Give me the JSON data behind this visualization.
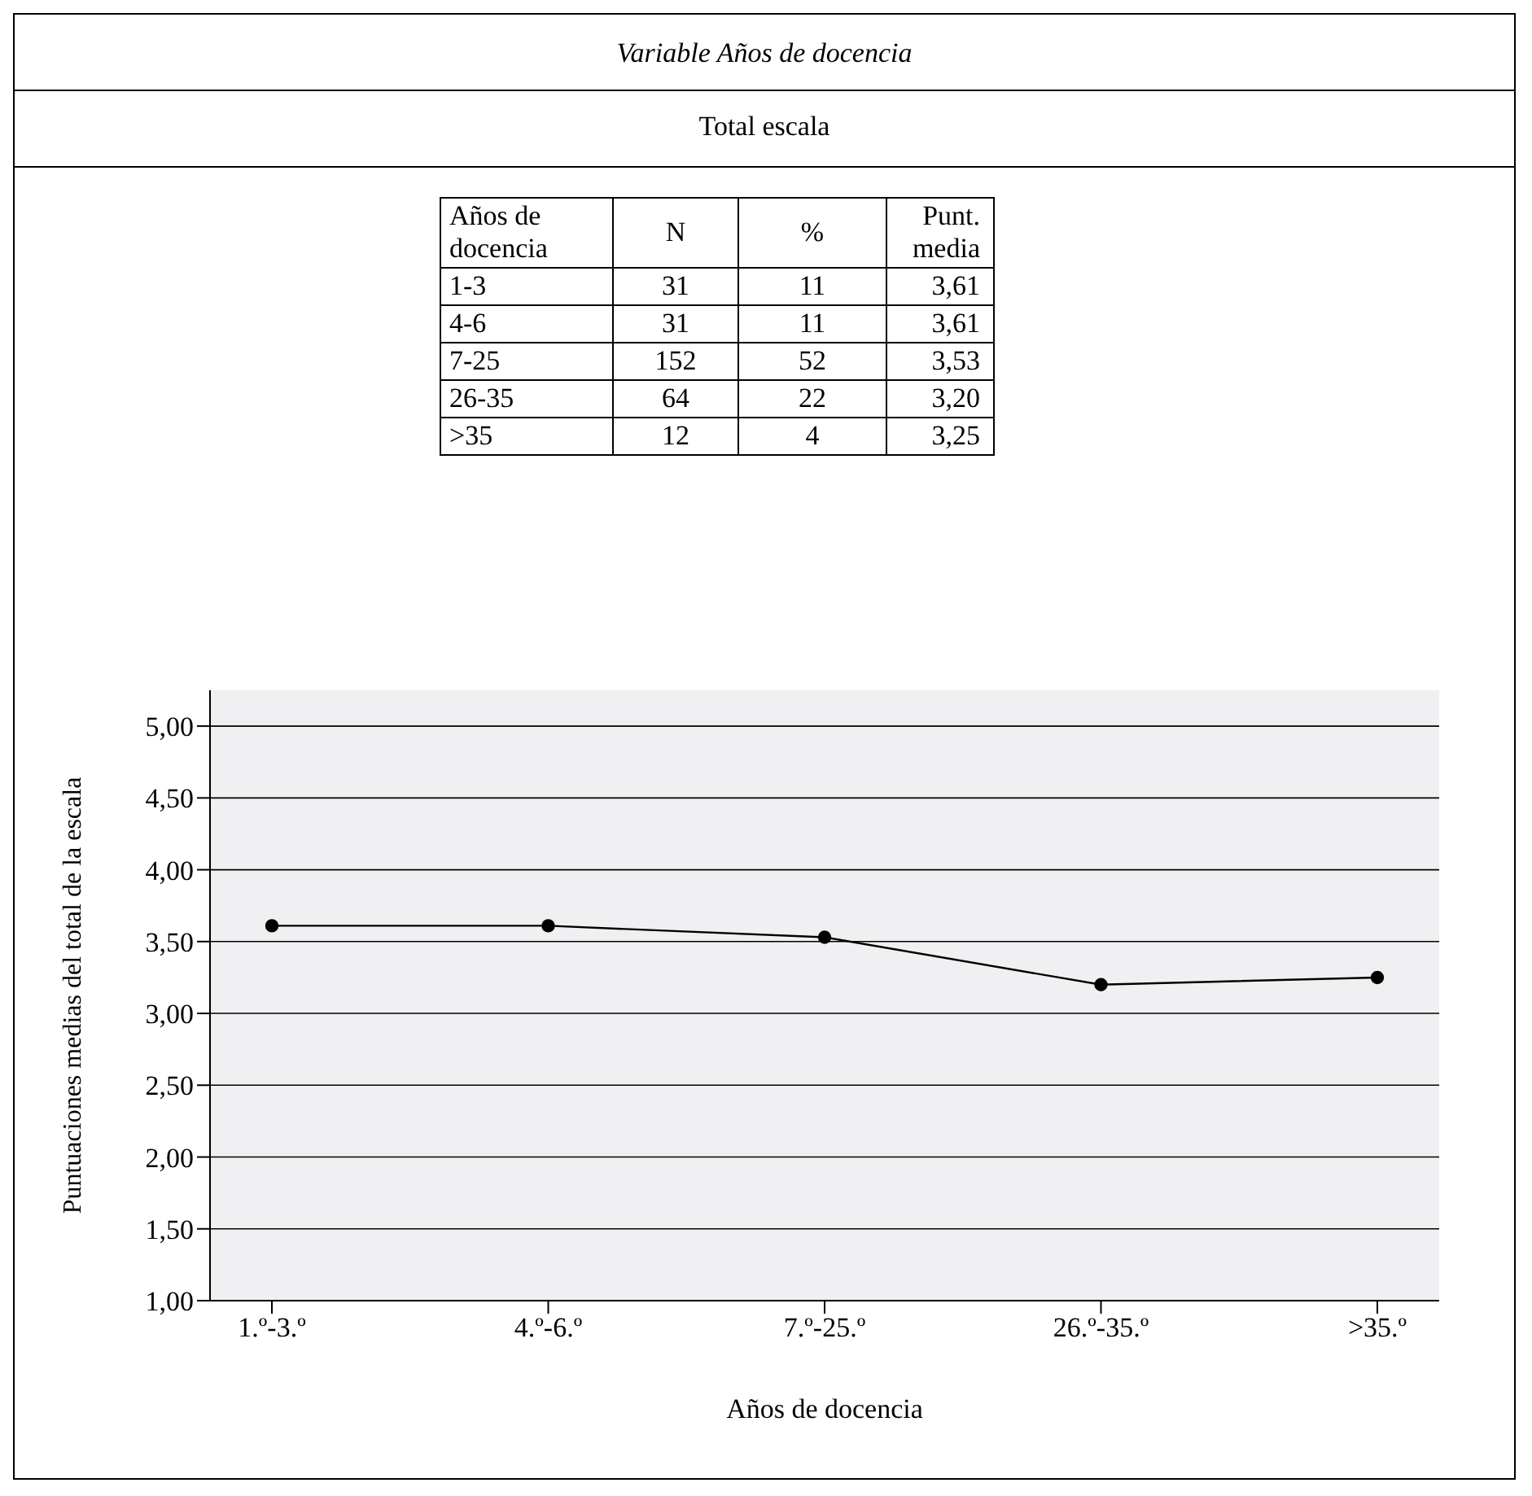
{
  "chart_data": {
    "type": "line",
    "title": "Variable Años de docencia",
    "subtitle": "Total escala",
    "categories": [
      "1.º-3.º",
      "4.º-6.º",
      "7.º-25.º",
      "26.º-35.º",
      ">35.º"
    ],
    "values": [
      3.61,
      3.61,
      3.53,
      3.2,
      3.25
    ],
    "color": "#000000",
    "xlabel": "Años de docencia",
    "ylabel": "Puntuaciones medias del total de la escala",
    "ylim": [
      1,
      5.25
    ],
    "yticks": [
      {
        "value": 1,
        "label": "1,00"
      },
      {
        "value": 1.5,
        "label": "1,50"
      },
      {
        "value": 2,
        "label": "2,00"
      },
      {
        "value": 2.5,
        "label": "2,50"
      },
      {
        "value": 3,
        "label": "3,00"
      },
      {
        "value": 3.5,
        "label": "3,50"
      },
      {
        "value": 4,
        "label": "4,00"
      },
      {
        "value": 4.5,
        "label": "4,50"
      },
      {
        "value": 5,
        "label": "5,00"
      }
    ],
    "grid": "y",
    "marker": "circle",
    "line_style": "solid",
    "annotations": [
      "Años de docencia",
      "N",
      "%",
      "Punt. media",
      "1-3",
      "31",
      "11",
      "3,61",
      "4-6",
      "31",
      "11",
      "3,61",
      "7-25",
      "152",
      "52",
      "3,53",
      "26-35",
      "64",
      "22",
      "3,20",
      ">35",
      "12",
      "4",
      "3,25"
    ]
  }
}
